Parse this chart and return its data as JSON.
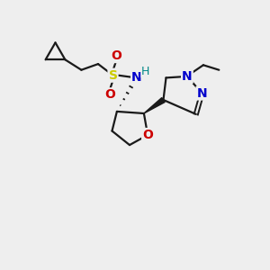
{
  "bg_color": "#eeeeee",
  "bond_color": "#1a1a1a",
  "N_color": "#0000cc",
  "O_color": "#cc0000",
  "S_color": "#cccc00",
  "H_color": "#008888",
  "figsize": [
    3.0,
    3.0
  ],
  "dpi": 100,
  "xlim": [
    0,
    10
  ],
  "ylim": [
    0,
    10
  ]
}
